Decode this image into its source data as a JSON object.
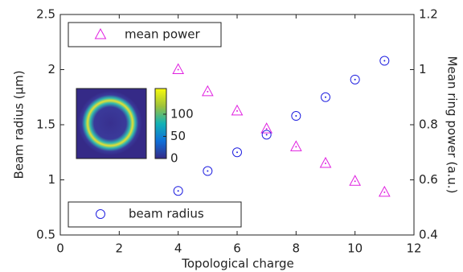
{
  "chart_data": {
    "type": "scatter",
    "xlabel": "Topological charge",
    "ylabel": "Beam radius (μm)",
    "y2label": "Mean ring power (a.u.)",
    "xlim": [
      0,
      12
    ],
    "xticks": [
      0,
      2,
      4,
      6,
      8,
      10,
      12
    ],
    "ylim": [
      0.5,
      2.5
    ],
    "yticks": [
      0.5,
      1,
      1.5,
      2,
      2.5
    ],
    "y2lim": [
      0.4,
      1.2
    ],
    "y2ticks": [
      0.4,
      0.6,
      0.8,
      1,
      1.2
    ],
    "series": [
      {
        "name": "mean power",
        "color": "#e020e0",
        "marker": "triangle",
        "axis": "y2",
        "legend_loc": "upper left",
        "x": [
          4,
          5,
          6,
          7,
          8,
          9,
          10,
          11
        ],
        "values": [
          1.0,
          0.92,
          0.85,
          0.785,
          0.72,
          0.66,
          0.595,
          0.555
        ]
      },
      {
        "name": "beam radius",
        "color": "#2020e0",
        "marker": "circle",
        "axis": "y",
        "legend_loc": "lower left",
        "x": [
          4,
          5,
          6,
          7,
          8,
          9,
          10,
          11
        ],
        "values": [
          0.9,
          1.08,
          1.25,
          1.41,
          1.58,
          1.75,
          1.91,
          2.08
        ]
      }
    ]
  },
  "inset": {
    "colorbar_lim": [
      0,
      158
    ],
    "colorbar_ticks": [
      0,
      50,
      100
    ]
  }
}
